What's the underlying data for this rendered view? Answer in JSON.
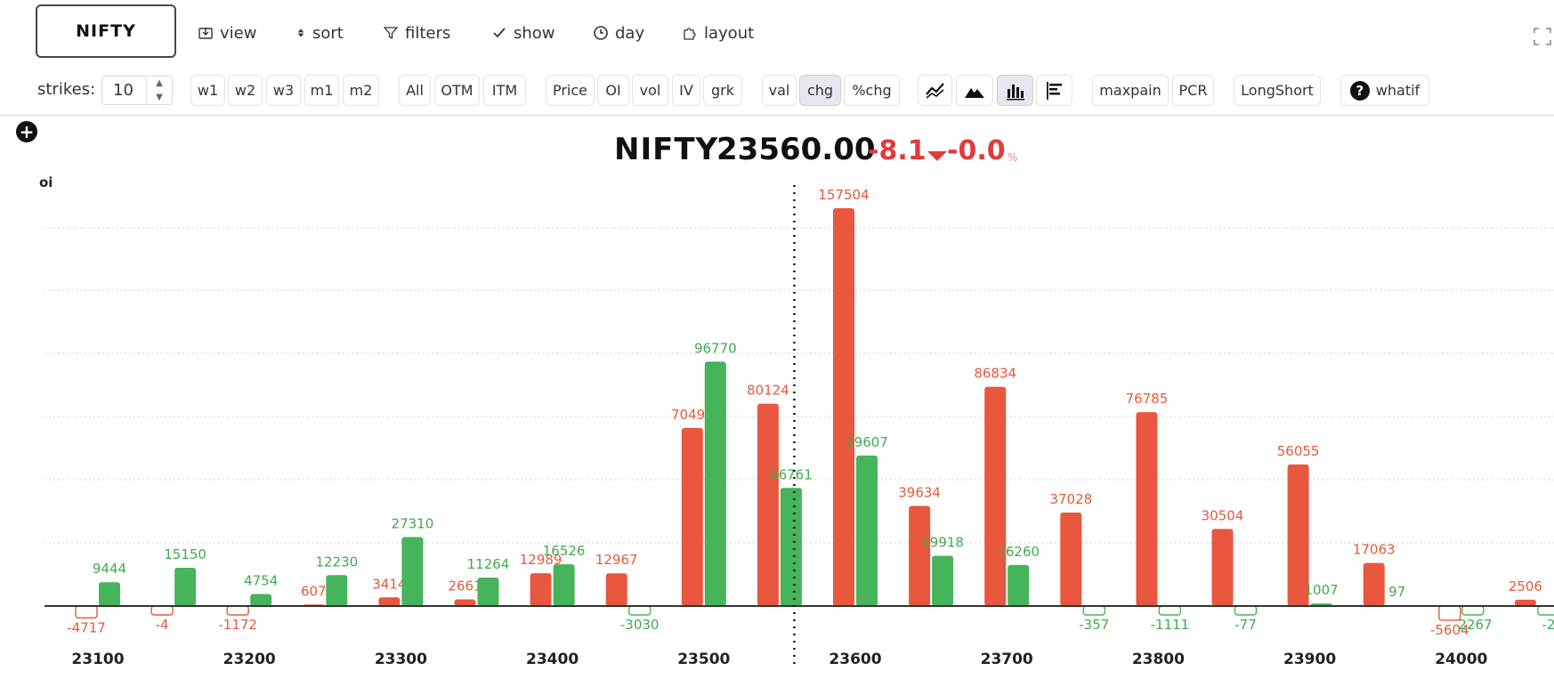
{
  "toolbar": {
    "symbol": "NIFTY",
    "view": "view",
    "sort": "sort",
    "filters": "filters",
    "show": "show",
    "day": "day",
    "layout": "layout"
  },
  "controls": {
    "strikes_label": "strikes:",
    "strikes_value": "10",
    "expiry": [
      "w1",
      "w2",
      "w3",
      "m1",
      "m2"
    ],
    "moneyness": [
      "All",
      "OTM",
      "ITM"
    ],
    "metric": [
      "Price",
      "OI",
      "vol",
      "IV",
      "grk"
    ],
    "mode": [
      "val",
      "chg",
      "%chg"
    ],
    "mode_active": "chg",
    "extra": [
      "maxpain",
      "PCR",
      "LongShort",
      "whatif"
    ]
  },
  "header": {
    "symbol": "NIFTY",
    "price": "23560.00",
    "change": "-8.1",
    "pct_change": "-0.0",
    "pct_sign": "%"
  },
  "colors": {
    "call": "#e8573e",
    "put": "#46b45a",
    "call_label": "#e45a3a",
    "put_label": "#3faa4e"
  },
  "chart_data": {
    "type": "bar",
    "ylabel": "oi",
    "spot": 23560,
    "strikes": [
      23100,
      23150,
      23200,
      23250,
      23300,
      23350,
      23400,
      23450,
      23500,
      23550,
      23600,
      23650,
      23700,
      23750,
      23800,
      23850,
      23900,
      23950,
      24000,
      24050
    ],
    "tick_labels": [
      "23100",
      "23200",
      "23300",
      "23400",
      "23500",
      "23600",
      "23700",
      "23800",
      "23900",
      "24000"
    ],
    "series": [
      {
        "values": [
          -4717,
          -4,
          -1172,
          607,
          3414,
          2661,
          12989,
          12967,
          70497,
          80124,
          157504,
          39634,
          86834,
          37028,
          76785,
          30504,
          56055,
          17063,
          -5604,
          2506
        ]
      },
      {
        "values": [
          9444,
          15150,
          4754,
          12230,
          27310,
          11264,
          16526,
          -3030,
          96770,
          46761,
          59607,
          19918,
          16260,
          -357,
          -1111,
          -77,
          1007,
          97,
          -2267,
          -2
        ]
      }
    ],
    "label_texts": [
      [
        "-4717",
        "-4",
        "-1172",
        "607",
        "3414",
        "2661",
        "12989",
        "12967",
        "70497",
        "80124",
        "157504",
        "39634",
        "86834",
        "37028",
        "76785",
        "30504",
        "56055",
        "17063",
        "-5604",
        "2506"
      ],
      [
        "9444",
        "15150",
        "4754",
        "12230",
        "27310",
        "11264",
        "16526",
        "-3030",
        "96770",
        "46761",
        "59607",
        "19918",
        "16260",
        "-357",
        "-1111",
        "-77",
        "1007",
        "97",
        "-2267",
        "-2"
      ]
    ],
    "grid": true
  }
}
